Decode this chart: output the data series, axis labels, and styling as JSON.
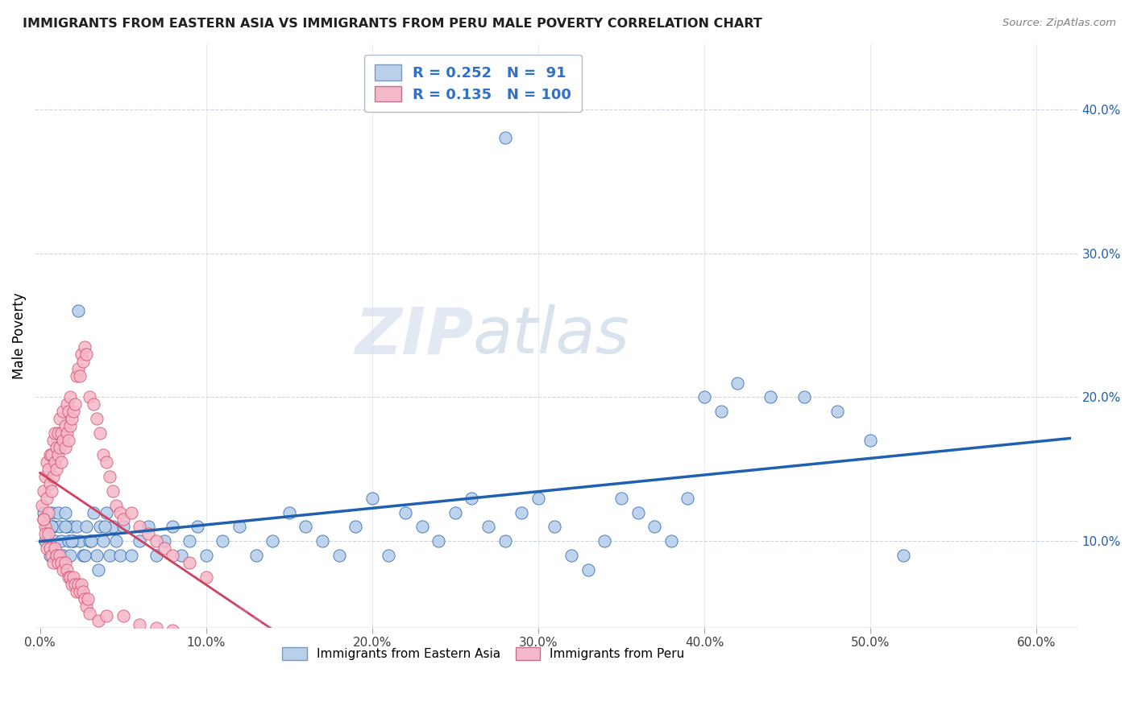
{
  "title": "IMMIGRANTS FROM EASTERN ASIA VS IMMIGRANTS FROM PERU MALE POVERTY CORRELATION CHART",
  "source": "Source: ZipAtlas.com",
  "xlabel_ticks": [
    "0.0%",
    "10.0%",
    "20.0%",
    "30.0%",
    "40.0%",
    "50.0%",
    "60.0%"
  ],
  "xlabel_vals": [
    0.0,
    0.1,
    0.2,
    0.3,
    0.4,
    0.5,
    0.6
  ],
  "ylabel_ticks": [
    "10.0%",
    "20.0%",
    "30.0%",
    "40.0%"
  ],
  "ylabel_vals": [
    0.1,
    0.2,
    0.3,
    0.4
  ],
  "ylabel_label": "Male Poverty",
  "xlim": [
    -0.003,
    0.625
  ],
  "ylim": [
    0.04,
    0.445
  ],
  "watermark_zip": "ZIP",
  "watermark_atlas": "atlas",
  "legend_R1": "0.252",
  "legend_N1": "91",
  "legend_R2": "0.135",
  "legend_N2": "100",
  "color_blue": "#b8d0ea",
  "color_pink": "#f5b8c8",
  "line_blue": "#2060b0",
  "line_pink": "#d04060",
  "line_pink_dashed": "#d06080",
  "legend_text_color": "#3070c8",
  "blue_scatter_x": [
    0.002,
    0.004,
    0.005,
    0.006,
    0.007,
    0.008,
    0.009,
    0.01,
    0.011,
    0.012,
    0.013,
    0.014,
    0.015,
    0.016,
    0.017,
    0.018,
    0.019,
    0.02,
    0.022,
    0.024,
    0.026,
    0.028,
    0.03,
    0.032,
    0.034,
    0.036,
    0.038,
    0.04,
    0.042,
    0.044,
    0.046,
    0.048,
    0.05,
    0.055,
    0.06,
    0.065,
    0.07,
    0.075,
    0.08,
    0.085,
    0.09,
    0.095,
    0.1,
    0.11,
    0.12,
    0.13,
    0.14,
    0.15,
    0.16,
    0.17,
    0.18,
    0.19,
    0.2,
    0.21,
    0.22,
    0.23,
    0.24,
    0.25,
    0.26,
    0.27,
    0.28,
    0.29,
    0.3,
    0.31,
    0.32,
    0.33,
    0.34,
    0.35,
    0.36,
    0.37,
    0.38,
    0.39,
    0.4,
    0.41,
    0.42,
    0.44,
    0.46,
    0.48,
    0.5,
    0.52,
    0.003,
    0.007,
    0.011,
    0.015,
    0.019,
    0.023,
    0.027,
    0.031,
    0.035,
    0.039,
    0.28
  ],
  "blue_scatter_y": [
    0.12,
    0.11,
    0.1,
    0.09,
    0.12,
    0.11,
    0.1,
    0.09,
    0.12,
    0.11,
    0.1,
    0.09,
    0.12,
    0.11,
    0.1,
    0.09,
    0.11,
    0.1,
    0.11,
    0.1,
    0.09,
    0.11,
    0.1,
    0.12,
    0.09,
    0.11,
    0.1,
    0.12,
    0.09,
    0.11,
    0.1,
    0.09,
    0.11,
    0.09,
    0.1,
    0.11,
    0.09,
    0.1,
    0.11,
    0.09,
    0.1,
    0.11,
    0.09,
    0.1,
    0.11,
    0.09,
    0.1,
    0.12,
    0.11,
    0.1,
    0.09,
    0.11,
    0.13,
    0.09,
    0.12,
    0.11,
    0.1,
    0.12,
    0.13,
    0.11,
    0.1,
    0.12,
    0.13,
    0.11,
    0.09,
    0.08,
    0.1,
    0.13,
    0.12,
    0.11,
    0.1,
    0.13,
    0.2,
    0.19,
    0.21,
    0.2,
    0.2,
    0.19,
    0.17,
    0.09,
    0.1,
    0.11,
    0.09,
    0.11,
    0.1,
    0.26,
    0.09,
    0.1,
    0.08,
    0.11,
    0.38
  ],
  "pink_scatter_x": [
    0.001,
    0.002,
    0.002,
    0.003,
    0.003,
    0.004,
    0.004,
    0.005,
    0.005,
    0.006,
    0.006,
    0.007,
    0.007,
    0.008,
    0.008,
    0.009,
    0.009,
    0.01,
    0.01,
    0.011,
    0.011,
    0.012,
    0.012,
    0.013,
    0.013,
    0.014,
    0.014,
    0.015,
    0.015,
    0.016,
    0.016,
    0.017,
    0.017,
    0.018,
    0.018,
    0.019,
    0.02,
    0.021,
    0.022,
    0.023,
    0.024,
    0.025,
    0.026,
    0.027,
    0.028,
    0.03,
    0.032,
    0.034,
    0.036,
    0.038,
    0.04,
    0.042,
    0.044,
    0.046,
    0.048,
    0.05,
    0.055,
    0.06,
    0.065,
    0.07,
    0.075,
    0.08,
    0.09,
    0.1,
    0.002,
    0.003,
    0.004,
    0.005,
    0.006,
    0.007,
    0.008,
    0.009,
    0.01,
    0.011,
    0.012,
    0.013,
    0.014,
    0.015,
    0.016,
    0.017,
    0.018,
    0.019,
    0.02,
    0.021,
    0.022,
    0.023,
    0.024,
    0.025,
    0.026,
    0.027,
    0.028,
    0.029,
    0.03,
    0.035,
    0.04,
    0.05,
    0.06,
    0.07,
    0.08,
    0.09
  ],
  "pink_scatter_y": [
    0.125,
    0.115,
    0.135,
    0.11,
    0.145,
    0.13,
    0.155,
    0.12,
    0.15,
    0.14,
    0.16,
    0.135,
    0.16,
    0.145,
    0.17,
    0.155,
    0.175,
    0.15,
    0.165,
    0.16,
    0.175,
    0.165,
    0.185,
    0.155,
    0.175,
    0.17,
    0.19,
    0.165,
    0.18,
    0.175,
    0.195,
    0.17,
    0.19,
    0.18,
    0.2,
    0.185,
    0.19,
    0.195,
    0.215,
    0.22,
    0.215,
    0.23,
    0.225,
    0.235,
    0.23,
    0.2,
    0.195,
    0.185,
    0.175,
    0.16,
    0.155,
    0.145,
    0.135,
    0.125,
    0.12,
    0.115,
    0.12,
    0.11,
    0.105,
    0.1,
    0.095,
    0.09,
    0.085,
    0.075,
    0.115,
    0.105,
    0.095,
    0.105,
    0.095,
    0.09,
    0.085,
    0.095,
    0.09,
    0.085,
    0.09,
    0.085,
    0.08,
    0.085,
    0.08,
    0.075,
    0.075,
    0.07,
    0.075,
    0.07,
    0.065,
    0.07,
    0.065,
    0.07,
    0.065,
    0.06,
    0.055,
    0.06,
    0.05,
    0.045,
    0.048,
    0.048,
    0.042,
    0.04,
    0.038,
    0.035
  ]
}
